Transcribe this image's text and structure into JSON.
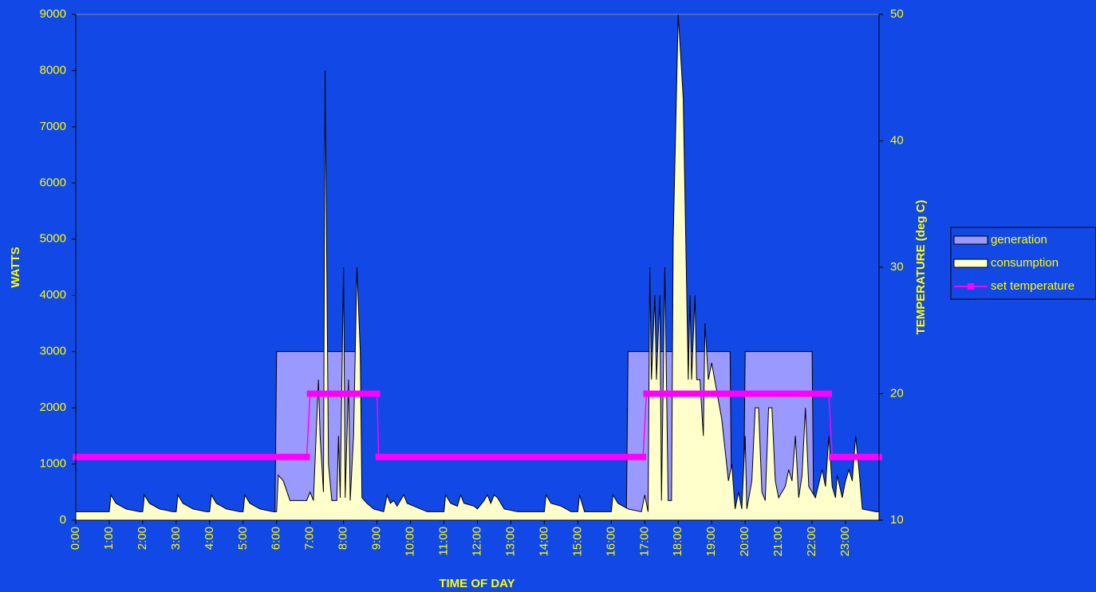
{
  "chart_data": {
    "type": "combo",
    "xlabel": "TIME OF DAY",
    "ylabel": "WATTS",
    "y2label": "TEMPERATURE (deg C)",
    "xlim": [
      0,
      24
    ],
    "ylim": [
      0,
      9000
    ],
    "y2lim": [
      10,
      50
    ],
    "yticks": [
      0,
      1000,
      2000,
      3000,
      4000,
      5000,
      6000,
      7000,
      8000,
      9000
    ],
    "y2ticks": [
      10,
      20,
      30,
      40,
      50
    ],
    "xticks": [
      {
        "value": 0,
        "label": "0:00"
      },
      {
        "value": 1,
        "label": "1:00"
      },
      {
        "value": 2,
        "label": "2:00"
      },
      {
        "value": 3,
        "label": "3:00"
      },
      {
        "value": 4,
        "label": "4:00"
      },
      {
        "value": 5,
        "label": "5:00"
      },
      {
        "value": 6,
        "label": "6:00"
      },
      {
        "value": 7,
        "label": "7:00"
      },
      {
        "value": 8,
        "label": "8:00"
      },
      {
        "value": 9,
        "label": "9:00"
      },
      {
        "value": 10,
        "label": "10:00"
      },
      {
        "value": 11,
        "label": "11:00"
      },
      {
        "value": 12,
        "label": "12:00"
      },
      {
        "value": 13,
        "label": "13:00"
      },
      {
        "value": 14,
        "label": "14:00"
      },
      {
        "value": 15,
        "label": "15:00"
      },
      {
        "value": 16,
        "label": "16:00"
      },
      {
        "value": 17,
        "label": "17:00"
      },
      {
        "value": 18,
        "label": "18:00"
      },
      {
        "value": 19,
        "label": "19:00"
      },
      {
        "value": 20,
        "label": "20:00"
      },
      {
        "value": 21,
        "label": "21:00"
      },
      {
        "value": 22,
        "label": "22:00"
      },
      {
        "value": 23,
        "label": "23:00"
      }
    ],
    "legend": "right",
    "series": [
      {
        "name": "generation",
        "kind": "area",
        "color": "#9999ff",
        "x": [
          0,
          5.95,
          6,
          8.5,
          8.55,
          16.45,
          16.5,
          19.55,
          19.6,
          19.95,
          20,
          22,
          22.05,
          24
        ],
        "values": [
          0,
          0,
          3000,
          3000,
          0,
          0,
          3000,
          3000,
          0,
          0,
          3000,
          3000,
          0,
          0
        ]
      },
      {
        "name": "consumption",
        "kind": "area",
        "color": "#ffffcc",
        "x": [
          0,
          1.0,
          1.05,
          1.2,
          1.5,
          1.9,
          2.0,
          2.05,
          2.2,
          2.5,
          2.9,
          3.0,
          3.05,
          3.2,
          3.5,
          3.9,
          4.0,
          4.05,
          4.2,
          4.5,
          4.9,
          5.0,
          5.05,
          5.2,
          5.5,
          5.9,
          6.0,
          6.05,
          6.2,
          6.4,
          6.9,
          7.0,
          7.1,
          7.25,
          7.3,
          7.4,
          7.45,
          7.55,
          7.65,
          7.8,
          7.85,
          7.9,
          8.0,
          8.05,
          8.15,
          8.2,
          8.3,
          8.4,
          8.5,
          8.55,
          8.7,
          8.9,
          9.2,
          9.3,
          9.4,
          9.5,
          9.6,
          9.8,
          9.9,
          10.3,
          10.5,
          11,
          11.05,
          11.2,
          11.4,
          11.5,
          11.6,
          11.9,
          12,
          12.2,
          12.3,
          12.4,
          12.5,
          12.6,
          12.8,
          13.2,
          14,
          14.05,
          14.2,
          14.5,
          14.8,
          15,
          15.05,
          15.2,
          16,
          16.05,
          16.2,
          16.5,
          16.9,
          17.0,
          17.1,
          17.15,
          17.2,
          17.3,
          17.35,
          17.45,
          17.5,
          17.6,
          17.7,
          17.8,
          17.85,
          18.0,
          18.15,
          18.3,
          18.35,
          18.4,
          18.5,
          18.55,
          18.65,
          18.75,
          18.8,
          18.9,
          19.0,
          19.3,
          19.5,
          19.6,
          19.7,
          19.8,
          19.9,
          20.0,
          20.05,
          20.2,
          20.3,
          20.4,
          20.5,
          20.6,
          20.7,
          20.8,
          20.9,
          21.0,
          21.2,
          21.3,
          21.4,
          21.5,
          21.6,
          21.7,
          21.8,
          21.9,
          22.0,
          22.1,
          22.3,
          22.4,
          22.5,
          22.6,
          22.7,
          22.75,
          22.9,
          23.0,
          23.1,
          23.2,
          23.3,
          23.4,
          23.5,
          23.9,
          24
        ],
        "values": [
          150,
          150,
          450,
          300,
          200,
          150,
          150,
          450,
          300,
          200,
          150,
          150,
          450,
          300,
          200,
          150,
          150,
          450,
          300,
          200,
          150,
          150,
          450,
          300,
          200,
          150,
          150,
          800,
          700,
          350,
          350,
          500,
          350,
          2500,
          1500,
          500,
          8000,
          1000,
          350,
          350,
          1500,
          400,
          4500,
          400,
          2500,
          350,
          1500,
          4500,
          3000,
          400,
          300,
          200,
          150,
          450,
          300,
          350,
          250,
          450,
          300,
          200,
          150,
          150,
          450,
          300,
          250,
          450,
          300,
          250,
          200,
          350,
          450,
          300,
          450,
          400,
          200,
          150,
          150,
          450,
          300,
          250,
          150,
          150,
          450,
          150,
          150,
          450,
          300,
          200,
          150,
          450,
          150,
          4500,
          2500,
          4000,
          2500,
          4000,
          350,
          4500,
          350,
          350,
          5000,
          9000,
          7500,
          2500,
          4000,
          2500,
          4000,
          2500,
          2500,
          1500,
          3500,
          2500,
          2800,
          1800,
          700,
          1000,
          200,
          500,
          200,
          1500,
          200,
          700,
          2000,
          2000,
          500,
          350,
          2000,
          2000,
          700,
          400,
          600,
          900,
          700,
          1500,
          400,
          800,
          2000,
          600,
          500,
          400,
          900,
          600,
          1500,
          600,
          400,
          800,
          400,
          700,
          900,
          700,
          1500,
          900,
          200,
          150,
          150
        ]
      },
      {
        "name": "set temperature",
        "kind": "line",
        "axis": "y2",
        "color": "#ff00ff",
        "x": [
          0,
          6.9,
          7.0,
          9.0,
          9.05,
          16.95,
          17.05,
          22.5,
          22.6,
          24
        ],
        "values": [
          15,
          15,
          20,
          20,
          15,
          15,
          20,
          20,
          15,
          15
        ]
      }
    ]
  }
}
